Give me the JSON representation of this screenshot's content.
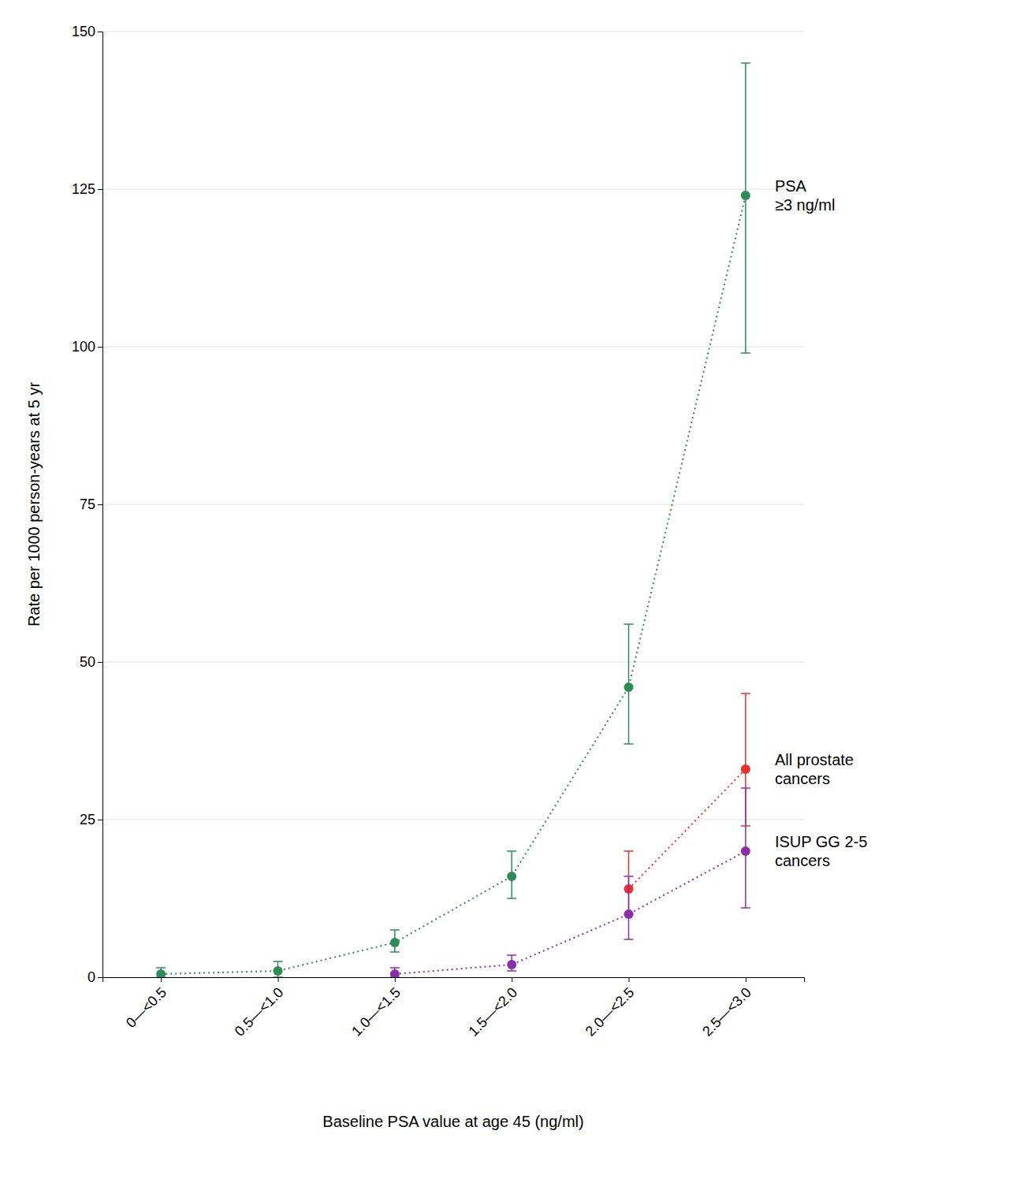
{
  "chart_data": {
    "type": "line",
    "xlabel": "Baseline PSA value at age 45 (ng/ml)",
    "ylabel": "Rate per 1000 person-years at 5 yr",
    "categories": [
      "0—<0.5",
      "0.5—<1.0",
      "1.0—<1.5",
      "1.5—<2.0",
      "2.0—<2.5",
      "2.5—<3.0"
    ],
    "series": [
      {
        "name": "PSA\n≥3 ng/ml",
        "color": "#2e8b57",
        "marker": "circle",
        "line_style": "dotted",
        "values": [
          0.5,
          1.0,
          5.5,
          16.0,
          46.0,
          124.0
        ],
        "ci_low": [
          0.0,
          0.0,
          4.0,
          12.5,
          37.0,
          99.0
        ],
        "ci_high": [
          1.5,
          2.5,
          7.5,
          20.0,
          56.0,
          145.0
        ]
      },
      {
        "name": "All prostate\ncancers",
        "color": "#e8312a",
        "marker": "circle",
        "line_style": "dotted",
        "values": [
          null,
          null,
          null,
          null,
          14.0,
          33.0
        ],
        "ci_low": [
          null,
          null,
          null,
          null,
          10.0,
          24.0
        ],
        "ci_high": [
          null,
          null,
          null,
          null,
          20.0,
          45.0
        ]
      },
      {
        "name": "ISUP GG 2-5\ncancers",
        "color": "#8b2fa8",
        "marker": "circle",
        "line_style": "dotted",
        "values": [
          null,
          null,
          0.5,
          2.0,
          10.0,
          20.0
        ],
        "ci_low": [
          null,
          null,
          0.0,
          1.0,
          6.0,
          11.0
        ],
        "ci_high": [
          null,
          null,
          1.5,
          3.5,
          16.0,
          30.0
        ]
      }
    ],
    "ylim": [
      0,
      150
    ],
    "yticks": [
      0,
      25,
      50,
      75,
      100,
      125,
      150
    ],
    "grid": true
  }
}
